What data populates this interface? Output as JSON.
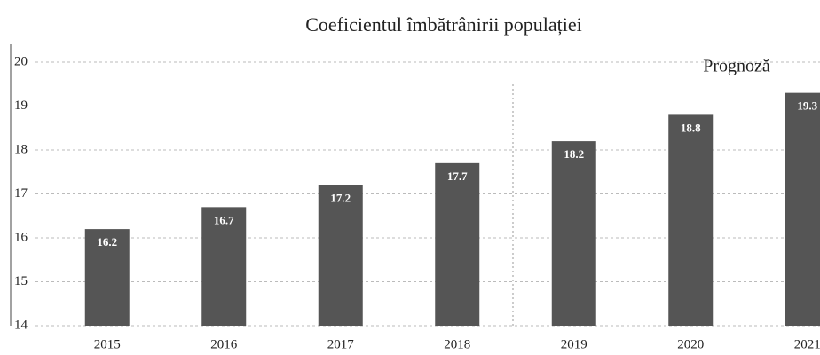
{
  "chart_data": {
    "type": "bar",
    "title": "Coeficientul îmbătrânirii populației",
    "annotation": "Prognoză",
    "categories": [
      "2015",
      "2016",
      "2017",
      "2018",
      "2019",
      "2020",
      "2021"
    ],
    "values": [
      16.2,
      16.7,
      17.2,
      17.7,
      18.2,
      18.8,
      19.3
    ],
    "color": "#555555",
    "ylim": [
      14,
      20
    ],
    "yticks": [
      14,
      15,
      16,
      17,
      18,
      19,
      20
    ],
    "grid": true
  }
}
